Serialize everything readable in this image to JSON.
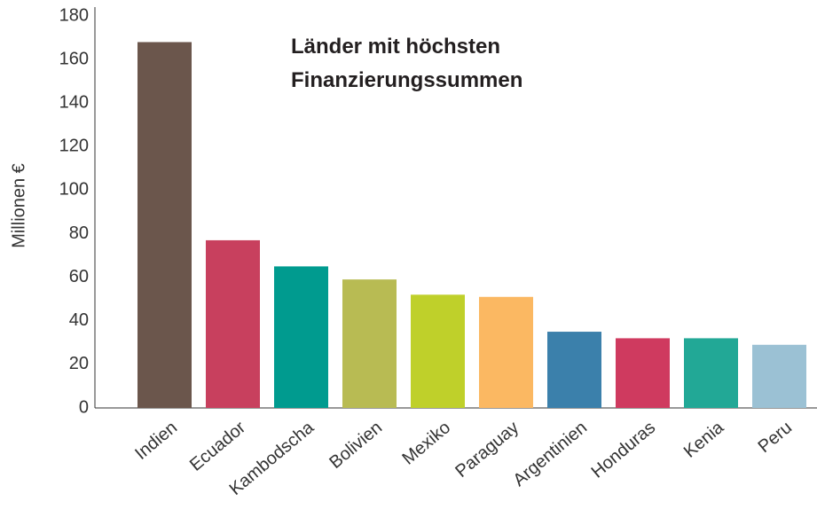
{
  "chart_data": {
    "type": "bar",
    "title": "Länder mit höchsten Finanzierungssummen",
    "y_label": "Millionen €",
    "categories": [
      "Indien",
      "Ecuador",
      "Kambodscha",
      "Bolivien",
      "Mexiko",
      "Paraguay",
      "Argentinien",
      "Honduras",
      "Kenia",
      "Peru"
    ],
    "values": [
      168,
      77,
      65,
      59,
      52,
      51,
      35,
      32,
      32,
      29
    ],
    "colors": [
      "#6b564c",
      "#c8405e",
      "#009b8f",
      "#b8bb53",
      "#bfd02a",
      "#fbb862",
      "#3b80ab",
      "#cf3a5f",
      "#22a896",
      "#9bc1d4"
    ],
    "ylim": [
      0,
      180
    ],
    "yticks": [
      0,
      20,
      40,
      60,
      80,
      100,
      120,
      140,
      160,
      180
    ],
    "grid": false
  }
}
